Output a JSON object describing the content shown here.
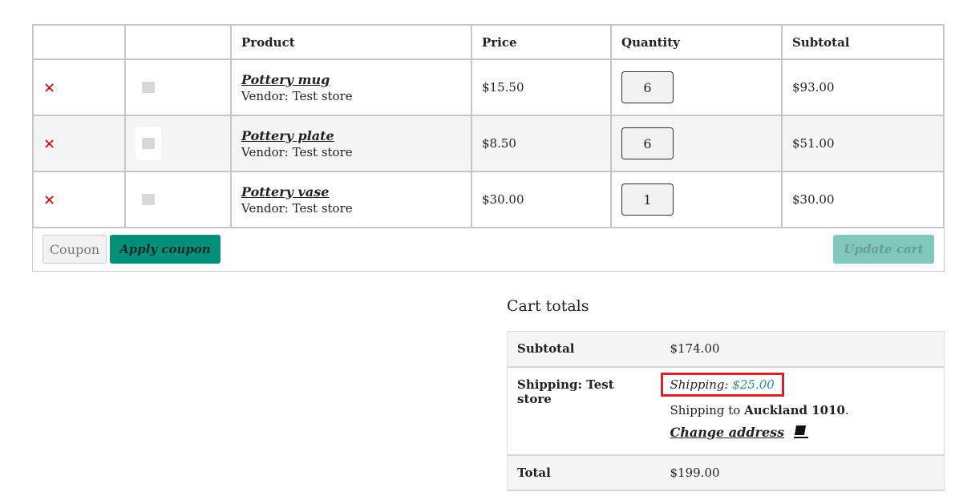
{
  "cart": {
    "headers": [
      "",
      "",
      "Product",
      "Price",
      "Quantity",
      "Subtotal"
    ],
    "items": [
      {
        "name": "Pottery mug",
        "vendor": "Vendor: Test store",
        "price": "$15.50",
        "quantity": "6",
        "subtotal": "$93.00"
      },
      {
        "name": "Pottery plate",
        "vendor": "Vendor: Test store",
        "price": "$8.50",
        "quantity": "6",
        "subtotal": "$51.00"
      },
      {
        "name": "Pottery vase",
        "vendor": "Vendor: Test store",
        "price": "$30.00",
        "quantity": "1",
        "subtotal": "$30.00"
      }
    ],
    "remove_symbol": "×",
    "coupon_placeholder": "Coupon",
    "apply_coupon": "Apply coupon",
    "update_cart": "Update cart"
  },
  "totals": {
    "title": "Cart totals",
    "subtotal_label": "Subtotal",
    "subtotal_value": "$174.00",
    "shipping_label": "Shipping: Test store",
    "shipping_method": "Shipping:",
    "shipping_amount": "$25.00",
    "shipping_to": "Shipping to",
    "shipping_location": "Auckland 1010",
    "change_address": "Change address",
    "total_label": "Total",
    "total_value": "$199.00"
  },
  "colors": {
    "accent": "#00907a",
    "remove": "#d0161b",
    "highlight": "#d0232e"
  }
}
